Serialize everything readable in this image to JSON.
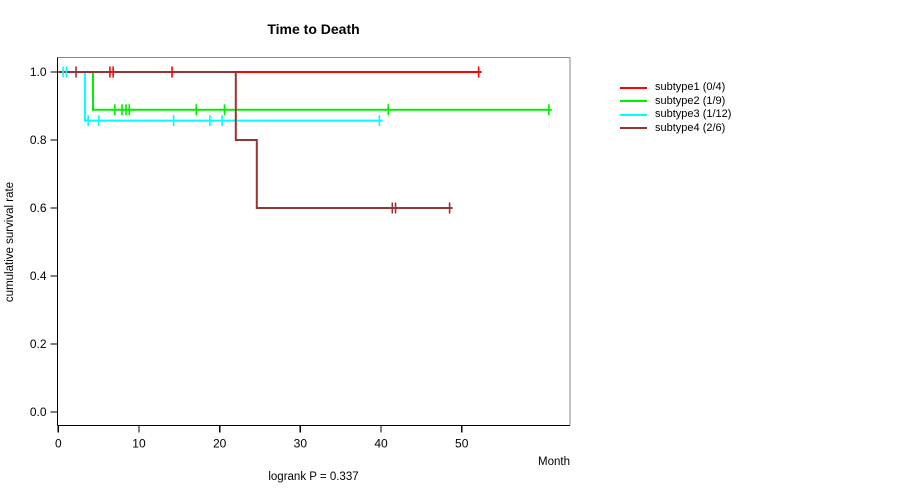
{
  "chart_data": {
    "type": "line",
    "variant": "kaplan-meier-step",
    "title": "Time to Death",
    "xlabel": "Month",
    "ylabel": "cumulative survival rate",
    "annotation": "logrank P = 0.337",
    "xlim": [
      0,
      63.4
    ],
    "ylim": [
      -0.04,
      1.04
    ],
    "xticks": [
      0,
      10,
      20,
      30,
      40,
      50
    ],
    "yticks": [
      {
        "value": 0.0,
        "label": "0.0"
      },
      {
        "value": 0.2,
        "label": "0.2"
      },
      {
        "value": 0.4,
        "label": "0.4"
      },
      {
        "value": 0.6,
        "label": "0.6"
      },
      {
        "value": 0.8,
        "label": "0.8"
      },
      {
        "value": 1.0,
        "label": "1.0"
      }
    ],
    "grid": false,
    "legend_position": "right-outside",
    "frame_color_top_right": "#888888",
    "axis_color": "#000000",
    "series": [
      {
        "name": "subtype1 (0/4)",
        "color": "#ff0000",
        "steps": [
          [
            0,
            1.0
          ],
          [
            52.1,
            1.0
          ]
        ],
        "censors": [
          [
            6.4,
            1.0
          ],
          [
            6.8,
            1.0
          ],
          [
            14.1,
            1.0
          ],
          [
            52.1,
            1.0
          ]
        ]
      },
      {
        "name": "subtype2 (1/9)",
        "color": "#00ee00",
        "steps": [
          [
            0,
            1.0
          ],
          [
            4.3,
            1.0
          ],
          [
            4.3,
            0.889
          ],
          [
            60.8,
            0.889
          ]
        ],
        "censors": [
          [
            7.0,
            0.889
          ],
          [
            7.9,
            0.889
          ],
          [
            8.4,
            0.889
          ],
          [
            8.8,
            0.889
          ],
          [
            17.1,
            0.889
          ],
          [
            20.6,
            0.889
          ],
          [
            40.9,
            0.889
          ],
          [
            60.8,
            0.889
          ]
        ]
      },
      {
        "name": "subtype3 (1/12)",
        "color": "#00ffff",
        "steps": [
          [
            0,
            1.0
          ],
          [
            3.3,
            1.0
          ],
          [
            3.3,
            0.857
          ],
          [
            39.8,
            0.857
          ]
        ],
        "censors": [
          [
            0.6,
            1.0
          ],
          [
            1.0,
            1.0
          ],
          [
            3.7,
            0.857
          ],
          [
            5.0,
            0.857
          ],
          [
            14.3,
            0.857
          ],
          [
            18.8,
            0.857
          ],
          [
            20.3,
            0.857
          ],
          [
            39.8,
            0.857
          ]
        ]
      },
      {
        "name": "subtype4 (2/6)",
        "color": "#993333",
        "steps": [
          [
            0,
            1.0
          ],
          [
            22.0,
            1.0
          ],
          [
            22.0,
            0.8
          ],
          [
            24.6,
            0.8
          ],
          [
            24.6,
            0.6
          ],
          [
            48.5,
            0.6
          ]
        ],
        "censors": [
          [
            2.2,
            1.0
          ],
          [
            41.4,
            0.6
          ],
          [
            41.8,
            0.6
          ],
          [
            48.5,
            0.6
          ]
        ]
      }
    ]
  }
}
